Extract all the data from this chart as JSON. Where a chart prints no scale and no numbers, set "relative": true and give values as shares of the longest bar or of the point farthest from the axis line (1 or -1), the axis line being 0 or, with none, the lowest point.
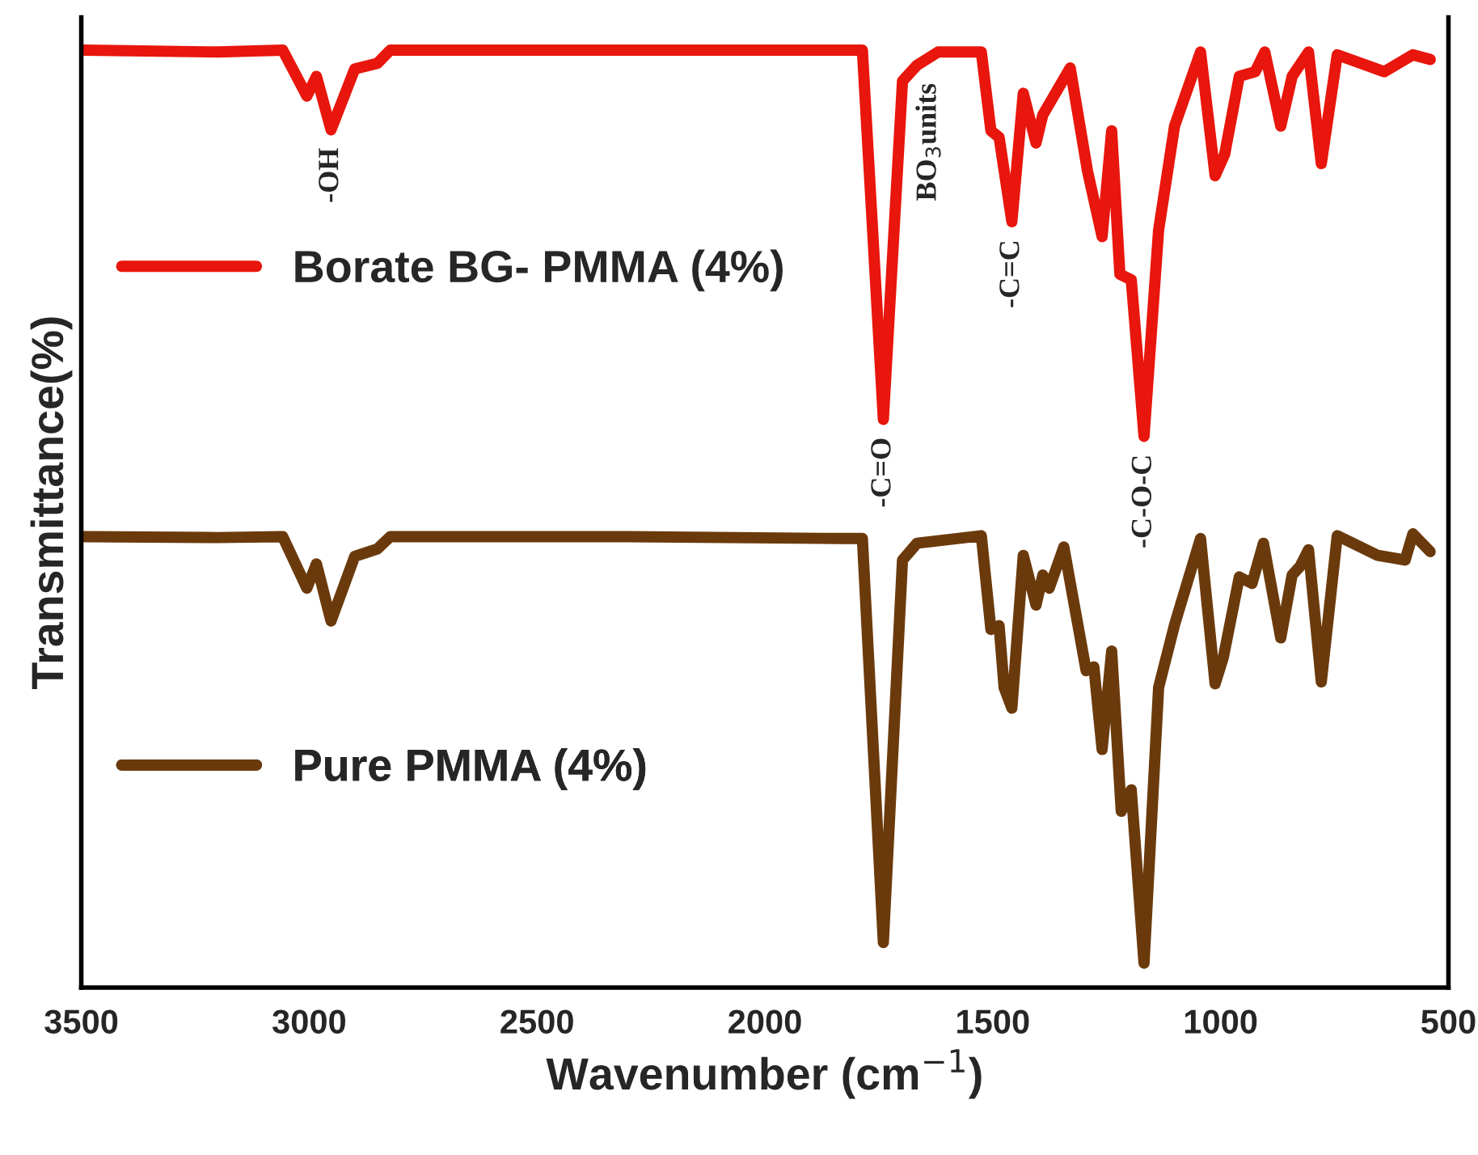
{
  "chart_data": {
    "type": "line",
    "relative": true,
    "xlabel": "Wavenumber (cm$^{−1}$)",
    "ylabel": "Transmittance(%)",
    "xlim": [
      3500,
      500
    ],
    "xticks": [
      3500,
      3000,
      2500,
      2000,
      1500,
      1000,
      500
    ],
    "grid": false,
    "legend": "left",
    "tick_labels": "x",
    "series": [
      {
        "name": "Borate BG- PMMA (4%)",
        "color": "#e8160c",
        "x": [
          3493,
          3200,
          3058,
          3005,
          2984,
          2952,
          2900,
          2850,
          2822,
          2300,
          1832,
          1786,
          1740,
          1698,
          1666,
          1620,
          1525,
          1504,
          1486,
          1458,
          1433,
          1405,
          1390,
          1330,
          1292,
          1260,
          1239,
          1221,
          1196,
          1168,
          1136,
          1101,
          1044,
          1012,
          991,
          959,
          924,
          903,
          868,
          843,
          807,
          779,
          744,
          641,
          578,
          540
        ],
        "values": [
          1.0,
          0.998,
          1.0,
          0.951,
          0.972,
          0.915,
          0.98,
          0.986,
          1.0,
          1.0,
          1.0,
          1.0,
          0.606,
          0.967,
          0.984,
          0.998,
          0.998,
          0.914,
          0.907,
          0.817,
          0.954,
          0.901,
          0.931,
          0.981,
          0.871,
          0.801,
          0.914,
          0.761,
          0.755,
          0.588,
          0.808,
          0.919,
          0.998,
          0.866,
          0.889,
          0.972,
          0.977,
          0.998,
          0.919,
          0.972,
          0.998,
          0.879,
          0.995,
          0.977,
          0.995,
          0.99
        ]
      },
      {
        "name": "Pure PMMA (4%)",
        "color": "#6b3a0c",
        "x": [
          3493,
          3200,
          3058,
          3005,
          2984,
          2952,
          2900,
          2850,
          2822,
          2300,
          1832,
          1786,
          1740,
          1698,
          1666,
          1525,
          1504,
          1486,
          1475,
          1458,
          1433,
          1405,
          1390,
          1376,
          1344,
          1295,
          1278,
          1260,
          1239,
          1218,
          1196,
          1168,
          1136,
          1101,
          1044,
          1012,
          994,
          959,
          931,
          906,
          868,
          843,
          826,
          807,
          779,
          744,
          655,
          595,
          578,
          540
        ],
        "values": [
          0.481,
          0.48,
          0.481,
          0.426,
          0.452,
          0.391,
          0.46,
          0.468,
          0.481,
          0.481,
          0.479,
          0.479,
          0.048,
          0.456,
          0.474,
          0.482,
          0.382,
          0.386,
          0.32,
          0.298,
          0.461,
          0.408,
          0.44,
          0.426,
          0.47,
          0.338,
          0.342,
          0.254,
          0.359,
          0.188,
          0.211,
          0.026,
          0.32,
          0.387,
          0.479,
          0.324,
          0.352,
          0.438,
          0.431,
          0.474,
          0.373,
          0.44,
          0.449,
          0.467,
          0.326,
          0.482,
          0.461,
          0.456,
          0.484,
          0.465
        ]
      }
    ],
    "annotations": [
      {
        "text": "-OH",
        "x": 2952,
        "y": 0.915
      },
      {
        "text": "-C=O",
        "x": 1740,
        "y": 0.606
      },
      {
        "text": "BO$_{3}$units",
        "x": 1640,
        "y": 0.984
      },
      {
        "text": "-C=C",
        "x": 1458,
        "y": 0.817
      },
      {
        "text": "-C-O-C",
        "x": 1168,
        "y": 0.588
      }
    ]
  }
}
